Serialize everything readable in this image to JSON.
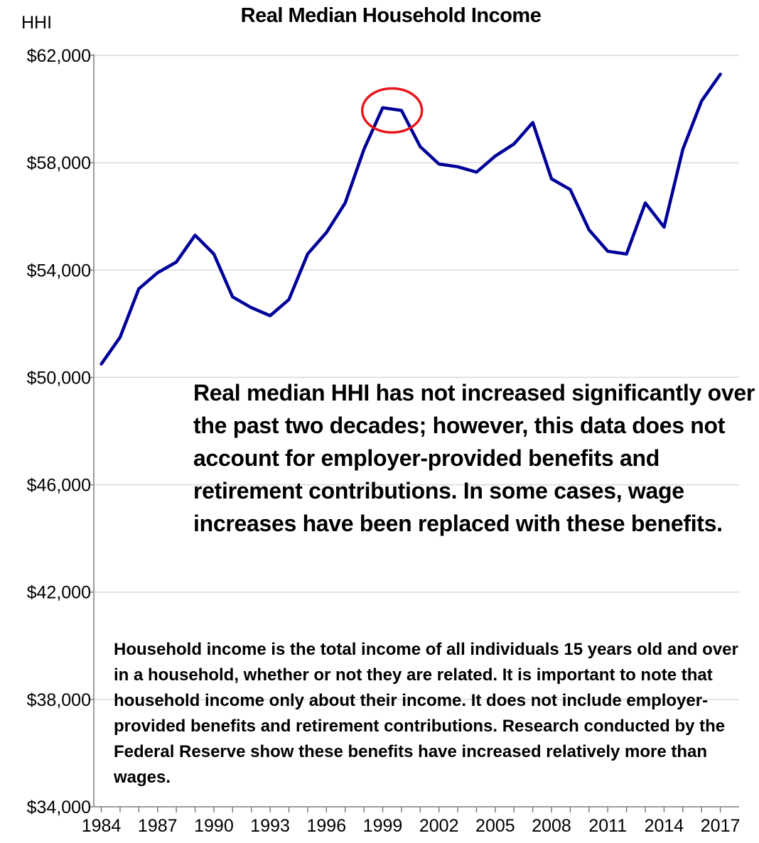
{
  "chart_data": {
    "type": "line",
    "title": "Real Median Household Income",
    "ylabel": "HHI",
    "xlabel": "",
    "ylim": [
      34000,
      62000
    ],
    "xlim": [
      1983.6,
      2018.0
    ],
    "y_ticks": [
      34000,
      38000,
      42000,
      46000,
      50000,
      54000,
      58000,
      62000
    ],
    "y_tick_labels": [
      "$34,000",
      "$38,000",
      "$42,000",
      "$46,000",
      "$50,000",
      "$54,000",
      "$58,000",
      "$62,000"
    ],
    "x_ticks": [
      1984,
      1987,
      1990,
      1993,
      1996,
      1999,
      2002,
      2005,
      2008,
      2011,
      2014,
      2017
    ],
    "x_tick_labels": [
      "1984",
      "1987",
      "1990",
      "1993",
      "1996",
      "1999",
      "2002",
      "2005",
      "2008",
      "2011",
      "2014",
      "2017"
    ],
    "grid": true,
    "series": [
      {
        "color": "#000099",
        "x": [
          1984,
          1985,
          1986,
          1987,
          1988,
          1989,
          1990,
          1991,
          1992,
          1993,
          1994,
          1995,
          1996,
          1997,
          1998,
          1999,
          2000,
          2001,
          2002,
          2003,
          2004,
          2005,
          2006,
          2007,
          2008,
          2009,
          2010,
          2011,
          2012,
          2013,
          2014,
          2015,
          2016,
          2017
        ],
        "values": [
          50500,
          51500,
          53300,
          53900,
          54300,
          55300,
          54600,
          53000,
          52600,
          52300,
          52900,
          54600,
          55400,
          56500,
          58500,
          60050,
          59950,
          58600,
          57950,
          57850,
          57650,
          58250,
          58700,
          59500,
          57400,
          57000,
          55500,
          54700,
          54600,
          56500,
          55600,
          58500,
          60300,
          61300
        ]
      }
    ],
    "annotations": [
      {
        "type": "ellipse",
        "color": "#e8141b",
        "target_x": 1999.5,
        "target_y": 59950
      }
    ],
    "notes": {
      "main": "Real median HHI has not increased significantly over the past two decades; however, this data does not account for employer-provided benefits and retirement contributions. In some cases, wage increases have been replaced with these benefits.",
      "definition": "Household income is the total income of all individuals 15 years old and over in a household, whether or not they are related. It is important to note that household income only about their income. It does not include employer-provided benefits and retirement contributions. Research conducted by the Federal Reserve show these benefits have increased relatively more than wages."
    }
  }
}
